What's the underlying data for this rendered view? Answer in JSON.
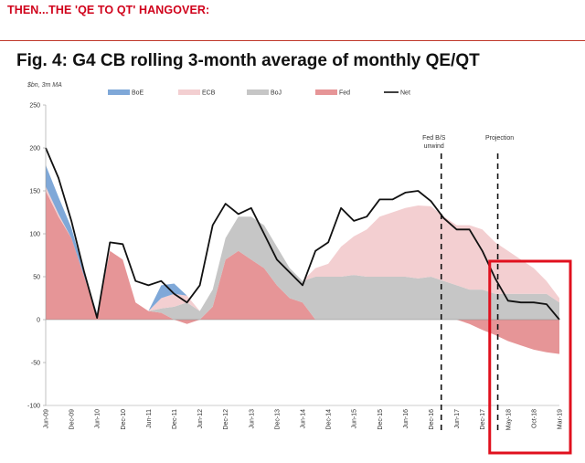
{
  "banner": "THEN...THE 'QE TO QT' HANGOVER:",
  "colors": {
    "banner": "#d0021b",
    "BoE": "#7fa8d8",
    "ECB": "#f3cfd1",
    "BoJ": "#c6c6c6",
    "Fed": "#e69597",
    "Net": "#111111",
    "highlight": "#e0101e"
  },
  "chart_data": {
    "type": "area",
    "title": "Fig. 4: G4 CB rolling 3-month average of monthly QE/QT",
    "units_label": "$bn, 3m MA",
    "ylim": [
      -100,
      250
    ],
    "yticks": [
      250,
      200,
      150,
      100,
      50,
      0,
      -50,
      -100
    ],
    "ytick_labels": [
      "250",
      "200",
      "150",
      "100",
      "50",
      "0",
      "-50",
      "-100"
    ],
    "xtick_labels": [
      "Jun-09",
      "Dec-09",
      "Jun-10",
      "Dec-10",
      "Jun-11",
      "Dec-11",
      "Jun-12",
      "Dec-12",
      "Jun-13",
      "Dec-13",
      "Jun-14",
      "Dec-14",
      "Jun-15",
      "Dec-15",
      "Jun-16",
      "Dec-16",
      "Jun-17",
      "Dec-17",
      "May-18",
      "Oct-18",
      "Mar-19"
    ],
    "x_range": [
      0,
      20
    ],
    "x": [
      0,
      0.5,
      1,
      1.5,
      2,
      2.5,
      3,
      3.5,
      4,
      4.5,
      5,
      5.5,
      6,
      6.5,
      7,
      7.5,
      8,
      8.5,
      9,
      9.5,
      10,
      10.5,
      11,
      11.5,
      12,
      12.5,
      13,
      13.5,
      14,
      14.5,
      15,
      15.5,
      16,
      16.5,
      17,
      17.5,
      18,
      18.5,
      19,
      19.5,
      20
    ],
    "series": [
      {
        "name": "BoE",
        "values": [
          25,
          20,
          12,
          5,
          2,
          0,
          0,
          0,
          0,
          15,
          12,
          0,
          0,
          0,
          0,
          0,
          0,
          0,
          0,
          0,
          0,
          0,
          0,
          0,
          0,
          0,
          0,
          0,
          0,
          0,
          0,
          0,
          0,
          0,
          0,
          0,
          0,
          0,
          0,
          0,
          0
        ]
      },
      {
        "name": "ECB",
        "values": [
          5,
          3,
          0,
          0,
          0,
          0,
          0,
          0,
          0,
          12,
          15,
          8,
          0,
          0,
          0,
          0,
          0,
          0,
          0,
          0,
          0,
          10,
          15,
          35,
          45,
          55,
          70,
          75,
          80,
          85,
          82,
          75,
          70,
          75,
          70,
          60,
          50,
          40,
          30,
          15,
          5
        ]
      },
      {
        "name": "BoJ",
        "values": [
          0,
          0,
          0,
          0,
          0,
          0,
          0,
          0,
          0,
          5,
          15,
          20,
          10,
          20,
          25,
          40,
          50,
          50,
          45,
          35,
          25,
          50,
          50,
          50,
          52,
          50,
          50,
          50,
          50,
          48,
          50,
          45,
          40,
          35,
          35,
          30,
          30,
          30,
          30,
          30,
          20
        ]
      },
      {
        "name": "Fed",
        "values": [
          150,
          120,
          95,
          50,
          5,
          80,
          70,
          20,
          10,
          8,
          0,
          -5,
          0,
          15,
          70,
          80,
          70,
          60,
          40,
          25,
          20,
          0,
          0,
          0,
          0,
          0,
          0,
          0,
          0,
          0,
          0,
          0,
          0,
          -5,
          -12,
          -18,
          -25,
          -30,
          -35,
          -38,
          -40
        ]
      },
      {
        "name": "Net",
        "values": [
          200,
          165,
          115,
          55,
          2,
          90,
          88,
          45,
          40,
          45,
          30,
          20,
          40,
          110,
          135,
          123,
          130,
          100,
          70,
          55,
          40,
          80,
          90,
          130,
          115,
          120,
          140,
          140,
          148,
          150,
          138,
          118,
          105,
          105,
          80,
          48,
          22,
          20,
          20,
          18,
          0
        ]
      }
    ],
    "annotations": [
      {
        "text": [
          "Fed B/S",
          "unwind"
        ],
        "x": 15.4
      },
      {
        "text": [
          "Projection"
        ],
        "x": 17.6
      }
    ],
    "highlight_x_range": [
      17.5,
      20
    ]
  }
}
